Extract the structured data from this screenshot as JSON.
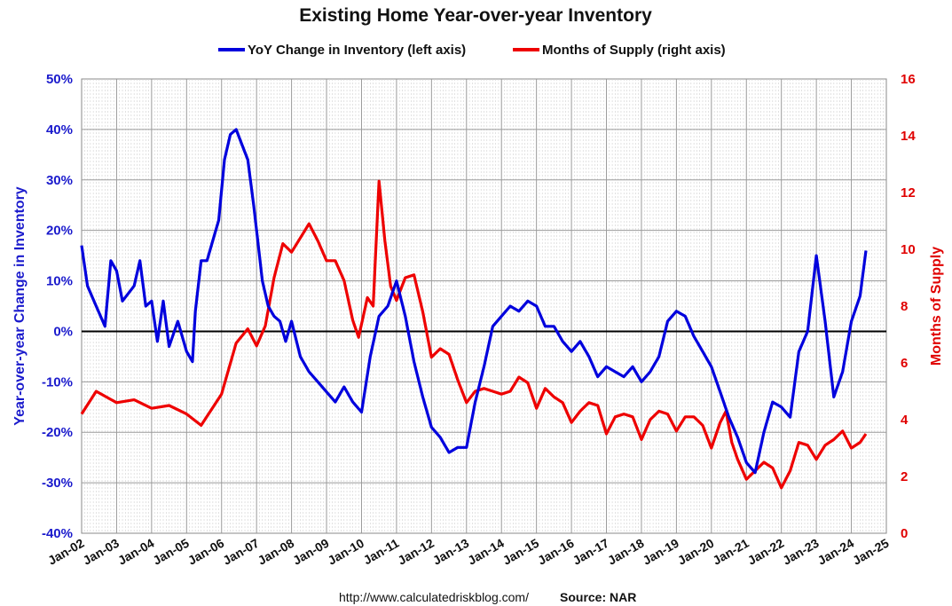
{
  "footer": {
    "url": "http://www.calculatedriskblog.com/",
    "source": "Source: NAR"
  },
  "chart_data": {
    "type": "line",
    "title": "Existing Home Year-over-year Inventory",
    "ylabel": "Year-over-year Change in Inventory",
    "y2label": "Months of Supply",
    "xlim": [
      "Jan-02",
      "Jan-25"
    ],
    "ylim": [
      -0.4,
      0.5
    ],
    "y2lim": [
      0,
      16
    ],
    "grid": true,
    "legend_position": "top-center",
    "x_tick_labels": [
      "Jan-02",
      "Jan-03",
      "Jan-04",
      "Jan-05",
      "Jan-06",
      "Jan-07",
      "Jan-08",
      "Jan-09",
      "Jan-10",
      "Jan-11",
      "Jan-12",
      "Jan-13",
      "Jan-14",
      "Jan-15",
      "Jan-16",
      "Jan-17",
      "Jan-18",
      "Jan-19",
      "Jan-20",
      "Jan-21",
      "Jan-22",
      "Jan-23",
      "Jan-24",
      "Jan-25"
    ],
    "y_tick_labels": [
      "50%",
      "40%",
      "30%",
      "20%",
      "10%",
      "0%",
      "-10%",
      "-20%",
      "-30%",
      "-40%"
    ],
    "y2_tick_labels": [
      "16",
      "14",
      "12",
      "10",
      "8",
      "6",
      "4",
      "2",
      "0"
    ],
    "series": [
      {
        "name": "YoY Change in Inventory (left axis)",
        "axis": "left",
        "color": "#0000dd",
        "points": [
          [
            "Jan-02",
            0.17
          ],
          [
            "Mar-02",
            0.09
          ],
          [
            "Jun-02",
            0.05
          ],
          [
            "Sep-02",
            0.01
          ],
          [
            "Nov-02",
            0.14
          ],
          [
            "Jan-03",
            0.12
          ],
          [
            "Mar-03",
            0.06
          ],
          [
            "Jul-03",
            0.09
          ],
          [
            "Sep-03",
            0.14
          ],
          [
            "Nov-03",
            0.05
          ],
          [
            "Jan-04",
            0.06
          ],
          [
            "Mar-04",
            -0.02
          ],
          [
            "May-04",
            0.06
          ],
          [
            "Jul-04",
            -0.03
          ],
          [
            "Oct-04",
            0.02
          ],
          [
            "Jan-05",
            -0.04
          ],
          [
            "Mar-05",
            -0.06
          ],
          [
            "Apr-05",
            0.04
          ],
          [
            "Jun-05",
            0.14
          ],
          [
            "Aug-05",
            0.14
          ],
          [
            "Oct-05",
            0.18
          ],
          [
            "Dec-05",
            0.22
          ],
          [
            "Feb-06",
            0.34
          ],
          [
            "Apr-06",
            0.39
          ],
          [
            "Jun-06",
            0.4
          ],
          [
            "Aug-06",
            0.37
          ],
          [
            "Oct-06",
            0.34
          ],
          [
            "Dec-06",
            0.25
          ],
          [
            "Jan-07",
            0.2
          ],
          [
            "Mar-07",
            0.1
          ],
          [
            "May-07",
            0.05
          ],
          [
            "Jul-07",
            0.03
          ],
          [
            "Sep-07",
            0.02
          ],
          [
            "Nov-07",
            -0.02
          ],
          [
            "Jan-08",
            0.02
          ],
          [
            "Apr-08",
            -0.05
          ],
          [
            "Jul-08",
            -0.08
          ],
          [
            "Oct-08",
            -0.1
          ],
          [
            "Jan-09",
            -0.12
          ],
          [
            "Apr-09",
            -0.14
          ],
          [
            "Jul-09",
            -0.11
          ],
          [
            "Oct-09",
            -0.14
          ],
          [
            "Jan-10",
            -0.16
          ],
          [
            "Apr-10",
            -0.05
          ],
          [
            "Jul-10",
            0.03
          ],
          [
            "Oct-10",
            0.05
          ],
          [
            "Jan-11",
            0.1
          ],
          [
            "Apr-11",
            0.03
          ],
          [
            "Jul-11",
            -0.06
          ],
          [
            "Oct-11",
            -0.13
          ],
          [
            "Jan-12",
            -0.19
          ],
          [
            "Apr-12",
            -0.21
          ],
          [
            "Jul-12",
            -0.24
          ],
          [
            "Oct-12",
            -0.23
          ],
          [
            "Jan-13",
            -0.23
          ],
          [
            "Apr-13",
            -0.14
          ],
          [
            "Jul-13",
            -0.07
          ],
          [
            "Oct-13",
            0.01
          ],
          [
            "Jan-14",
            0.03
          ],
          [
            "Apr-14",
            0.05
          ],
          [
            "Jul-14",
            0.04
          ],
          [
            "Oct-14",
            0.06
          ],
          [
            "Jan-15",
            0.05
          ],
          [
            "Apr-15",
            0.01
          ],
          [
            "Jul-15",
            0.01
          ],
          [
            "Oct-15",
            -0.02
          ],
          [
            "Jan-16",
            -0.04
          ],
          [
            "Apr-16",
            -0.02
          ],
          [
            "Jul-16",
            -0.05
          ],
          [
            "Oct-16",
            -0.09
          ],
          [
            "Jan-17",
            -0.07
          ],
          [
            "Apr-17",
            -0.08
          ],
          [
            "Jul-17",
            -0.09
          ],
          [
            "Oct-17",
            -0.07
          ],
          [
            "Jan-18",
            -0.1
          ],
          [
            "Apr-18",
            -0.08
          ],
          [
            "Jul-18",
            -0.05
          ],
          [
            "Oct-18",
            0.02
          ],
          [
            "Jan-19",
            0.04
          ],
          [
            "Apr-19",
            0.03
          ],
          [
            "Jul-19",
            -0.01
          ],
          [
            "Oct-19",
            -0.04
          ],
          [
            "Jan-20",
            -0.07
          ],
          [
            "Apr-20",
            -0.12
          ],
          [
            "Jul-20",
            -0.17
          ],
          [
            "Oct-20",
            -0.21
          ],
          [
            "Jan-21",
            -0.26
          ],
          [
            "Apr-21",
            -0.28
          ],
          [
            "Jul-21",
            -0.2
          ],
          [
            "Oct-21",
            -0.14
          ],
          [
            "Jan-22",
            -0.15
          ],
          [
            "Apr-22",
            -0.17
          ],
          [
            "Jul-22",
            -0.04
          ],
          [
            "Oct-22",
            0.0
          ],
          [
            "Jan-23",
            0.15
          ],
          [
            "Apr-23",
            0.02
          ],
          [
            "Jul-23",
            -0.13
          ],
          [
            "Oct-23",
            -0.08
          ],
          [
            "Jan-24",
            0.02
          ],
          [
            "Apr-24",
            0.07
          ],
          [
            "Jun-24",
            0.16
          ]
        ]
      },
      {
        "name": "Months of Supply (right axis)",
        "axis": "right",
        "color": "#ee0000",
        "points": [
          [
            "Jan-02",
            4.2
          ],
          [
            "Jun-02",
            5.0
          ],
          [
            "Jan-03",
            4.6
          ],
          [
            "Jul-03",
            4.7
          ],
          [
            "Jan-04",
            4.4
          ],
          [
            "Jul-04",
            4.5
          ],
          [
            "Jan-05",
            4.2
          ],
          [
            "Jun-05",
            3.8
          ],
          [
            "Jan-06",
            4.9
          ],
          [
            "Jun-06",
            6.7
          ],
          [
            "Oct-06",
            7.2
          ],
          [
            "Jan-07",
            6.6
          ],
          [
            "Apr-07",
            7.3
          ],
          [
            "Jul-07",
            9.0
          ],
          [
            "Oct-07",
            10.2
          ],
          [
            "Jan-08",
            9.9
          ],
          [
            "Apr-08",
            10.4
          ],
          [
            "Jul-08",
            10.9
          ],
          [
            "Oct-08",
            10.3
          ],
          [
            "Jan-09",
            9.6
          ],
          [
            "Apr-09",
            9.6
          ],
          [
            "Jul-09",
            8.9
          ],
          [
            "Oct-09",
            7.5
          ],
          [
            "Dec-09",
            6.9
          ],
          [
            "Mar-10",
            8.3
          ],
          [
            "May-10",
            8.0
          ],
          [
            "Jul-10",
            12.4
          ],
          [
            "Sep-10",
            10.3
          ],
          [
            "Nov-10",
            8.7
          ],
          [
            "Jan-11",
            8.2
          ],
          [
            "Apr-11",
            9.0
          ],
          [
            "Jul-11",
            9.1
          ],
          [
            "Oct-11",
            7.8
          ],
          [
            "Jan-12",
            6.2
          ],
          [
            "Apr-12",
            6.5
          ],
          [
            "Jul-12",
            6.3
          ],
          [
            "Oct-12",
            5.4
          ],
          [
            "Jan-13",
            4.6
          ],
          [
            "Apr-13",
            5.0
          ],
          [
            "Jul-13",
            5.1
          ],
          [
            "Oct-13",
            5.0
          ],
          [
            "Jan-14",
            4.9
          ],
          [
            "Apr-14",
            5.0
          ],
          [
            "Jul-14",
            5.5
          ],
          [
            "Oct-14",
            5.3
          ],
          [
            "Jan-15",
            4.4
          ],
          [
            "Apr-15",
            5.1
          ],
          [
            "Jul-15",
            4.8
          ],
          [
            "Oct-15",
            4.6
          ],
          [
            "Jan-16",
            3.9
          ],
          [
            "Apr-16",
            4.3
          ],
          [
            "Jul-16",
            4.6
          ],
          [
            "Oct-16",
            4.5
          ],
          [
            "Jan-17",
            3.5
          ],
          [
            "Apr-17",
            4.1
          ],
          [
            "Jul-17",
            4.2
          ],
          [
            "Oct-17",
            4.1
          ],
          [
            "Jan-18",
            3.3
          ],
          [
            "Apr-18",
            4.0
          ],
          [
            "Jul-18",
            4.3
          ],
          [
            "Oct-18",
            4.2
          ],
          [
            "Jan-19",
            3.6
          ],
          [
            "Apr-19",
            4.1
          ],
          [
            "Jul-19",
            4.1
          ],
          [
            "Oct-19",
            3.8
          ],
          [
            "Jan-20",
            3.0
          ],
          [
            "Apr-20",
            3.9
          ],
          [
            "Jun-20",
            4.3
          ],
          [
            "Aug-20",
            3.2
          ],
          [
            "Oct-20",
            2.6
          ],
          [
            "Jan-21",
            1.9
          ],
          [
            "Apr-21",
            2.2
          ],
          [
            "Jul-21",
            2.5
          ],
          [
            "Oct-21",
            2.3
          ],
          [
            "Jan-22",
            1.6
          ],
          [
            "Apr-22",
            2.2
          ],
          [
            "Jul-22",
            3.2
          ],
          [
            "Oct-22",
            3.1
          ],
          [
            "Jan-23",
            2.6
          ],
          [
            "Apr-23",
            3.1
          ],
          [
            "Jul-23",
            3.3
          ],
          [
            "Oct-23",
            3.6
          ],
          [
            "Jan-24",
            3.0
          ],
          [
            "Apr-24",
            3.2
          ],
          [
            "Jun-24",
            3.5
          ]
        ]
      }
    ]
  }
}
